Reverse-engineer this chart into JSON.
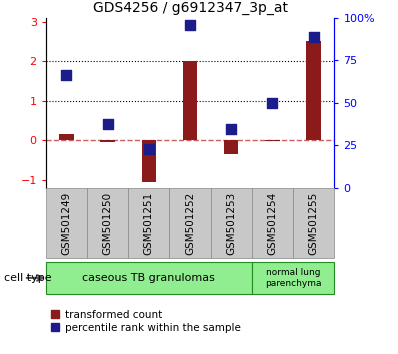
{
  "title": "GDS4256 / g6912347_3p_at",
  "samples": [
    "GSM501249",
    "GSM501250",
    "GSM501251",
    "GSM501252",
    "GSM501253",
    "GSM501254",
    "GSM501255"
  ],
  "transformed_count": [
    0.15,
    -0.05,
    -1.05,
    2.0,
    -0.35,
    -0.02,
    2.5
  ],
  "percentile_rank": [
    1.65,
    0.42,
    -0.22,
    2.92,
    0.28,
    0.93,
    2.62
  ],
  "ylim_left": [
    -1.2,
    3.1
  ],
  "ylim_right": [
    0,
    100
  ],
  "yticks_left": [
    -1,
    0,
    1,
    2,
    3
  ],
  "yticks_right": [
    0,
    25,
    50,
    75,
    100
  ],
  "bar_color": "#8B1A1A",
  "dot_color": "#1C1C8B",
  "zero_line_color": "#CD5C5C",
  "bg_color": "#FFFFFF",
  "legend_red_label": "transformed count",
  "legend_blue_label": "percentile rank within the sample",
  "bar_width": 0.35,
  "dot_size": 50,
  "group1_count": 5,
  "group2_count": 2,
  "group1_label": "caseous TB granulomas",
  "group2_label": "normal lung\nparenchyma",
  "cell_type_label": "cell type",
  "group_color": "#90EE90",
  "group_edge_color": "#228B22",
  "sample_box_color": "#C8C8C8",
  "sample_box_edge": "#888888"
}
